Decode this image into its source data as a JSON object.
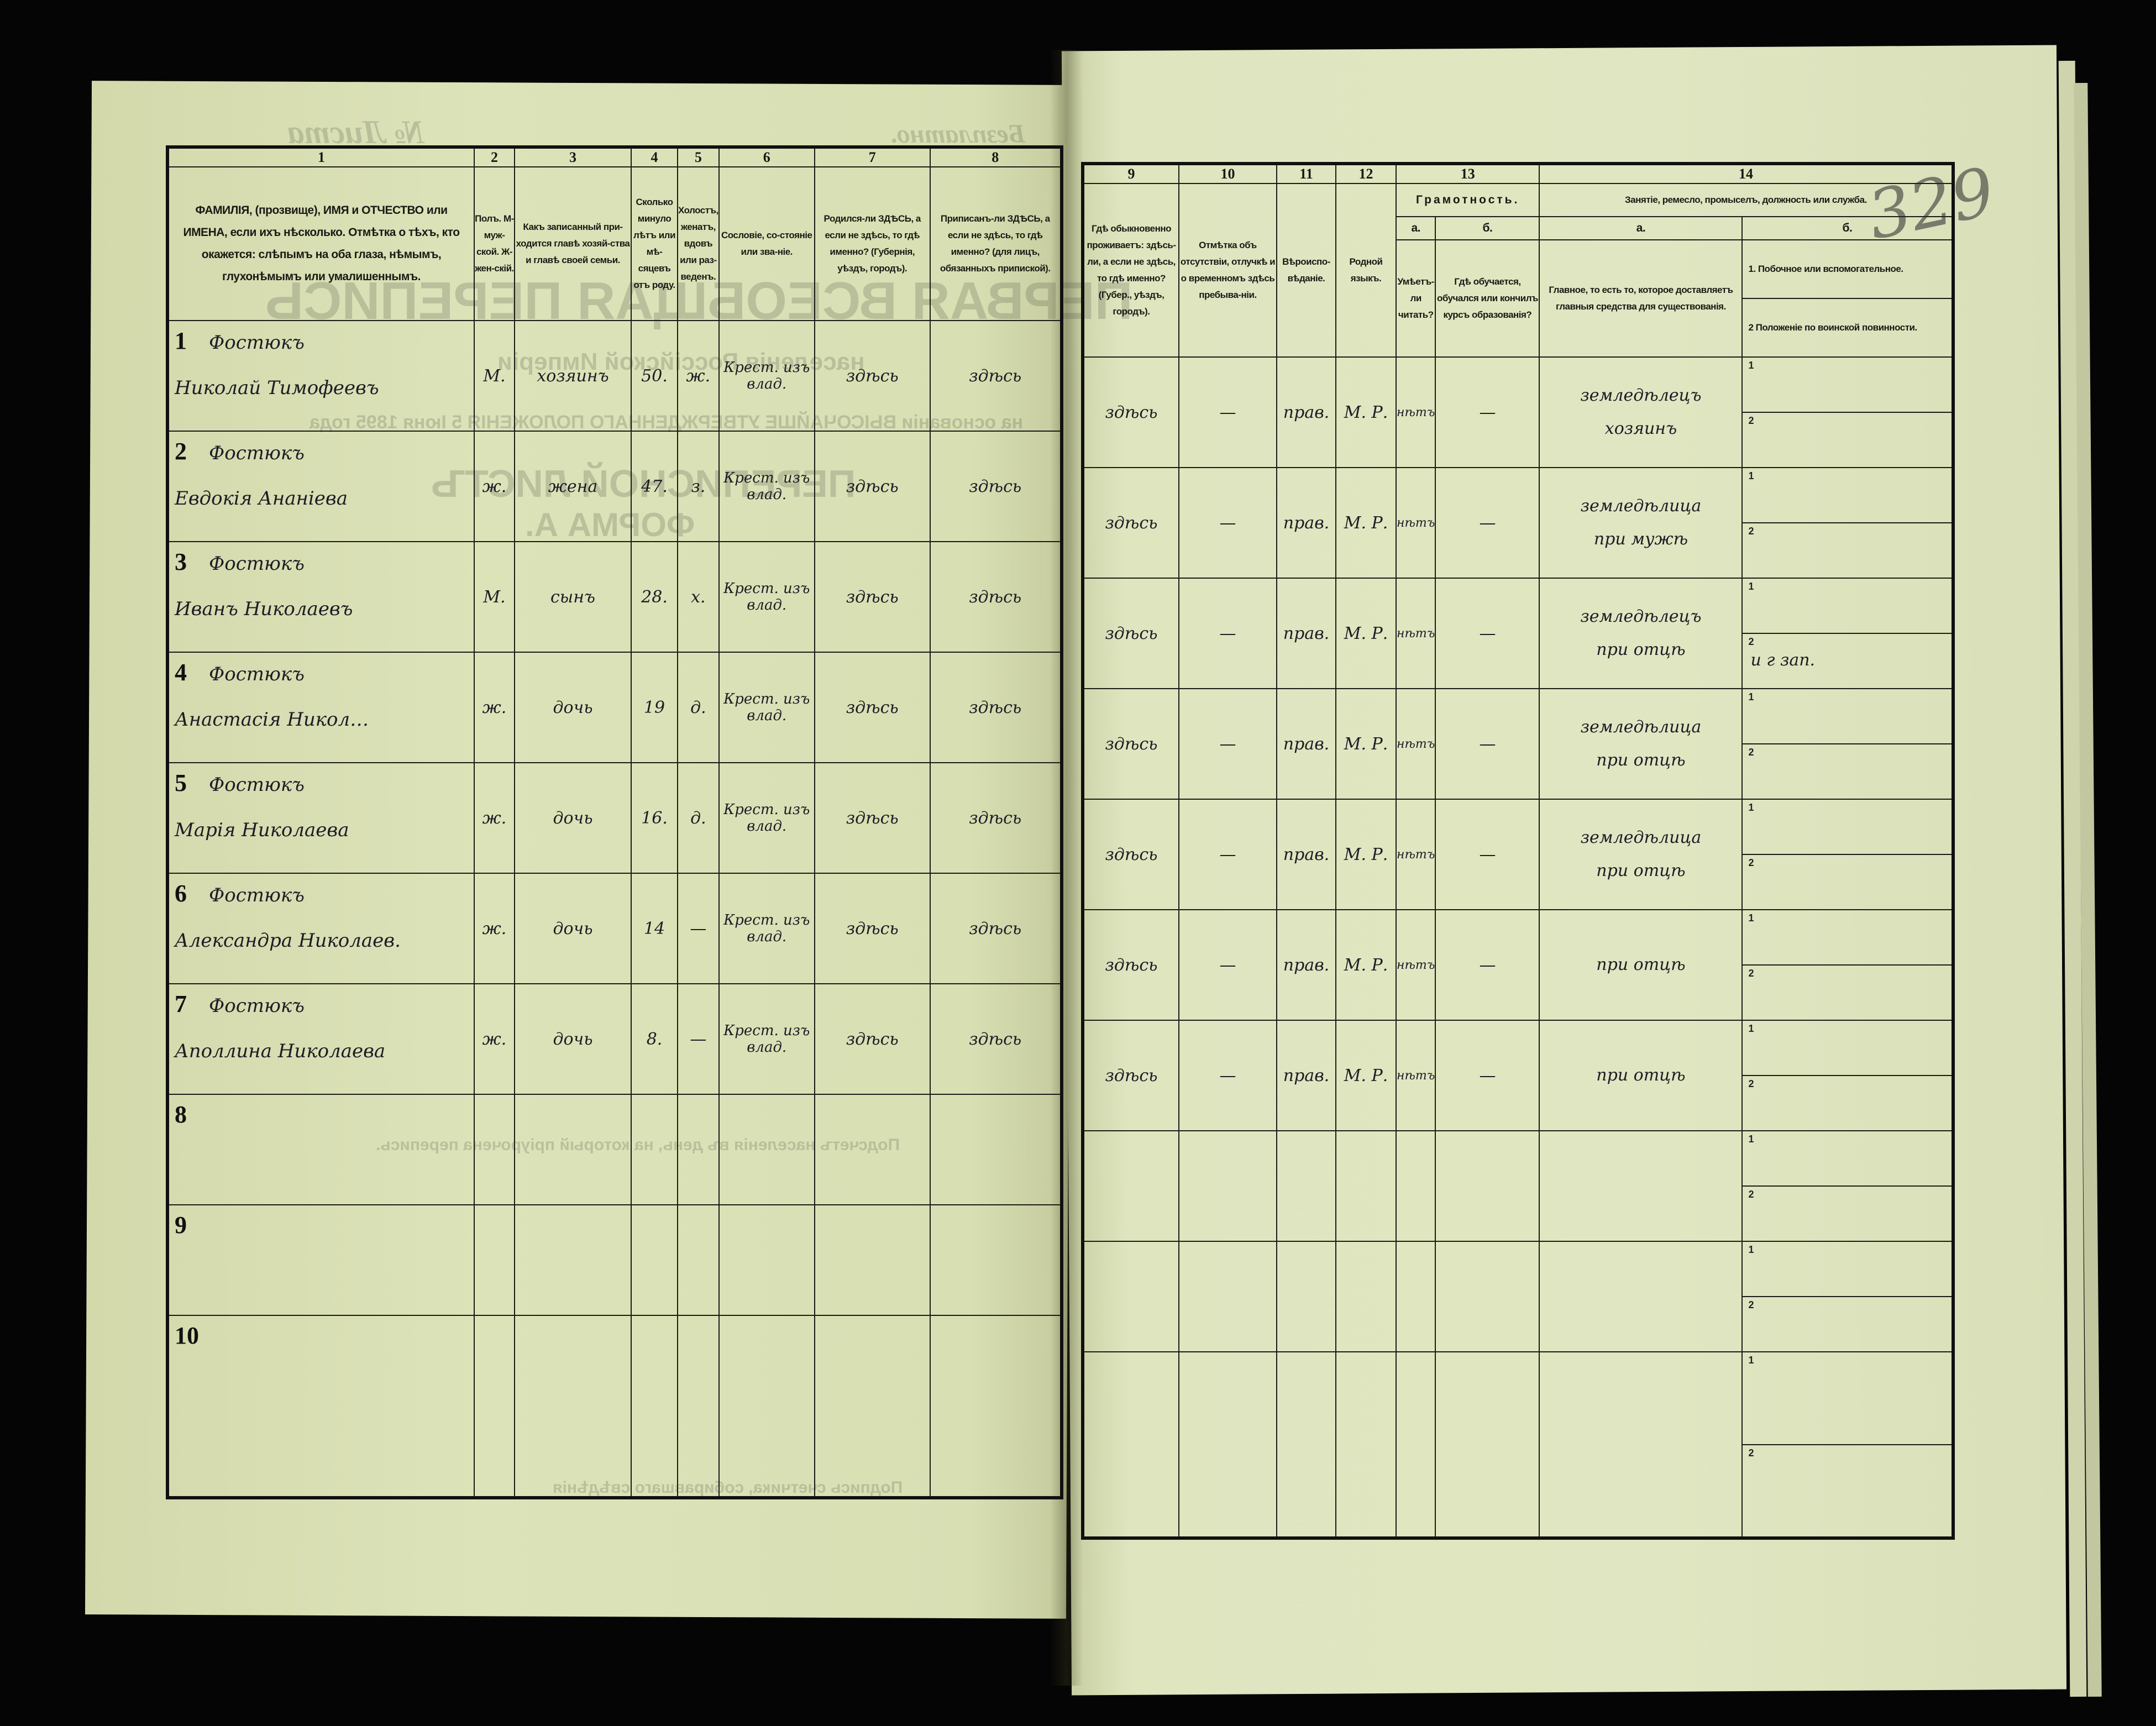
{
  "left_page": {
    "bleed_through": {
      "sheet_no": "№ Листа",
      "free": "Безплатно.",
      "title": "ПЕРВАЯ ВСЕОБЩАЯ ПЕРЕПИСЬ",
      "subtitle": "населенія Россійской Имперіи",
      "basis": "на основаніи ВЫСОЧАЙШЕ УТВЕРЖДЕННАГО ПОЛОЖЕНІЯ 5 Іюня 1895 года",
      "form_title": "ПЕРЕПИСНОЙ ЛИСТЪ",
      "form_letter": "ФОРМА А.",
      "tally": "Подсчетъ населенія въ день, на который пріурочена перепись.",
      "signature": "Подпись счетчика, собиравшаго свѣдѣнія"
    },
    "column_numbers": [
      "1",
      "2",
      "3",
      "4",
      "5",
      "6",
      "7",
      "8"
    ],
    "headers": [
      "ФАМИЛІЯ, (прозвище), ИМЯ и ОТЧЕСТВО или ИМЕНА, если ихъ нѣсколько. Отмѣтка о тѣхъ, кто окажется: слѣпымъ на оба глаза, нѣмымъ, глухонѣмымъ или умалишеннымъ.",
      "Полъ. М-муж-ской. Ж-жен-скій.",
      "Какъ записанный при-ходится главѣ хозяй-ства и главѣ своей семьи.",
      "Сколько минуло лѣтъ или мѣ-сяцевъ отъ роду.",
      "Холостъ, женатъ, вдовъ или раз-веденъ.",
      "Сословіе, со-стояніе или зва-ніе.",
      "Родился-ли ЗДѢСЬ, а если не здѣсь, то гдѣ именно? (Губернія, уѣздъ, городъ).",
      "Приписанъ-ли ЗДѢСЬ, а если не здѣсь, то гдѣ именно? (для лицъ, обязанныхъ припиской)."
    ],
    "rows": [
      {
        "num": "1",
        "surname": "Фостюкъ",
        "given": "Николай Тимофеевъ",
        "sex": "М.",
        "relation": "хозяинъ",
        "age": "50.",
        "marital": "ж.",
        "estate": "Крест. изъ влад.",
        "born": "здѣсь",
        "registered": "здѣсь"
      },
      {
        "num": "2",
        "surname": "Фостюкъ",
        "given": "Евдокія Ананіева",
        "sex": "ж.",
        "relation": "жена",
        "age": "47.",
        "marital": "з.",
        "estate": "Крест. изъ влад.",
        "born": "здѣсь",
        "registered": "здѣсь"
      },
      {
        "num": "3",
        "surname": "Фостюкъ",
        "given": "Иванъ Николаевъ",
        "sex": "М.",
        "relation": "сынъ",
        "age": "28.",
        "marital": "х.",
        "estate": "Крест. изъ влад.",
        "born": "здѣсь",
        "registered": "здѣсь"
      },
      {
        "num": "4",
        "surname": "Фостюкъ",
        "given": "Анастасія Никол…",
        "sex": "ж.",
        "relation": "дочь",
        "age": "19",
        "marital": "д.",
        "estate": "Крест. изъ влад.",
        "born": "здѣсь",
        "registered": "здѣсь"
      },
      {
        "num": "5",
        "surname": "Фостюкъ",
        "given": "Марія Николаева",
        "sex": "ж.",
        "relation": "дочь",
        "age": "16.",
        "marital": "д.",
        "estate": "Крест. изъ влад.",
        "born": "здѣсь",
        "registered": "здѣсь"
      },
      {
        "num": "6",
        "surname": "Фостюкъ",
        "given": "Александра Николаев.",
        "sex": "ж.",
        "relation": "дочь",
        "age": "14",
        "marital": "—",
        "estate": "Крест. изъ влад.",
        "born": "здѣсь",
        "registered": "здѣсь"
      },
      {
        "num": "7",
        "surname": "Фостюкъ",
        "given": "Аполлина Николаева",
        "sex": "ж.",
        "relation": "дочь",
        "age": "8.",
        "marital": "—",
        "estate": "Крест. изъ влад.",
        "born": "здѣсь",
        "registered": "здѣсь"
      },
      {
        "num": "8",
        "surname": "",
        "given": "",
        "sex": "",
        "relation": "",
        "age": "",
        "marital": "",
        "estate": "",
        "born": "",
        "registered": ""
      },
      {
        "num": "9",
        "surname": "",
        "given": "",
        "sex": "",
        "relation": "",
        "age": "",
        "marital": "",
        "estate": "",
        "born": "",
        "registered": ""
      },
      {
        "num": "10",
        "surname": "",
        "given": "",
        "sex": "",
        "relation": "",
        "age": "",
        "marital": "",
        "estate": "",
        "born": "",
        "registered": ""
      }
    ]
  },
  "right_page": {
    "page_number": "329",
    "column_numbers": [
      "9",
      "10",
      "11",
      "12",
      "13",
      "14"
    ],
    "headers": {
      "residence": "Гдѣ обыкновенно проживаетъ: здѣсь-ли, а если не здѣсь, то гдѣ именно? (Губер., уѣздъ, городъ).",
      "absence": "Отмѣтка объ отсутствіи, отлучкѣ и о временномъ здѣсь пребыва-ніи.",
      "religion": "Вѣроиспо-вѣданіе.",
      "language": "Родной языкъ.",
      "literacy": "Грамотность.",
      "literacy_a_label": "а.",
      "literacy_a": "Умѣетъ-ли читать?",
      "literacy_b_label": "б.",
      "literacy_b": "Гдѣ обучается, обучался или кончилъ курсъ образованія?",
      "occupation": "Занятіе, ремесло, промыселъ, должность или служба.",
      "occupation_a_label": "а.",
      "occupation_a": "Главное, то есть то, которое доставляетъ главныя средства для существованія.",
      "occupation_b_label": "б.",
      "occupation_b1": "1. Побочное или вспомогательное.",
      "occupation_b2": "2 Положеніе по воинской повинности."
    },
    "sub_labels": [
      "1",
      "2"
    ],
    "rows": [
      {
        "residence": "здѣсь",
        "absence": "—",
        "religion": "прав.",
        "language": "М. Р.",
        "literacy_a": "нѣтъ",
        "literacy_b": "—",
        "occupation_main": "земледѣлецъ хозяинъ",
        "secondary": "",
        "military": ""
      },
      {
        "residence": "здѣсь",
        "absence": "—",
        "religion": "прав.",
        "language": "М. Р.",
        "literacy_a": "нѣтъ",
        "literacy_b": "—",
        "occupation_main": "земледѣлица при мужѣ",
        "secondary": "",
        "military": ""
      },
      {
        "residence": "здѣсь",
        "absence": "—",
        "religion": "прав.",
        "language": "М. Р.",
        "literacy_a": "нѣтъ",
        "literacy_b": "—",
        "occupation_main": "земледѣлецъ при отцѣ",
        "secondary": "",
        "military": "и г зап."
      },
      {
        "residence": "здѣсь",
        "absence": "—",
        "religion": "прав.",
        "language": "М. Р.",
        "literacy_a": "нѣтъ",
        "literacy_b": "—",
        "occupation_main": "земледѣлица при отцѣ",
        "secondary": "",
        "military": ""
      },
      {
        "residence": "здѣсь",
        "absence": "—",
        "religion": "прав.",
        "language": "М. Р.",
        "literacy_a": "нѣтъ",
        "literacy_b": "—",
        "occupation_main": "земледѣлица при отцѣ",
        "secondary": "",
        "military": ""
      },
      {
        "residence": "здѣсь",
        "absence": "—",
        "religion": "прав.",
        "language": "М. Р.",
        "literacy_a": "нѣтъ",
        "literacy_b": "—",
        "occupation_main": "при отцѣ",
        "secondary": "",
        "military": ""
      },
      {
        "residence": "здѣсь",
        "absence": "—",
        "religion": "прав.",
        "language": "М. Р.",
        "literacy_a": "нѣтъ",
        "literacy_b": "—",
        "occupation_main": "при отцѣ",
        "secondary": "",
        "military": ""
      },
      {
        "residence": "",
        "absence": "",
        "religion": "",
        "language": "",
        "literacy_a": "",
        "literacy_b": "",
        "occupation_main": "",
        "secondary": "",
        "military": ""
      },
      {
        "residence": "",
        "absence": "",
        "religion": "",
        "language": "",
        "literacy_a": "",
        "literacy_b": "",
        "occupation_main": "",
        "secondary": "",
        "military": ""
      },
      {
        "residence": "",
        "absence": "",
        "religion": "",
        "language": "",
        "literacy_a": "",
        "literacy_b": "",
        "occupation_main": "",
        "secondary": "",
        "military": ""
      }
    ]
  },
  "colors": {
    "paper": "#dde3b9",
    "ink_print": "#1a1a14",
    "ink_hand": "#1c1c24",
    "background": "#050505"
  }
}
